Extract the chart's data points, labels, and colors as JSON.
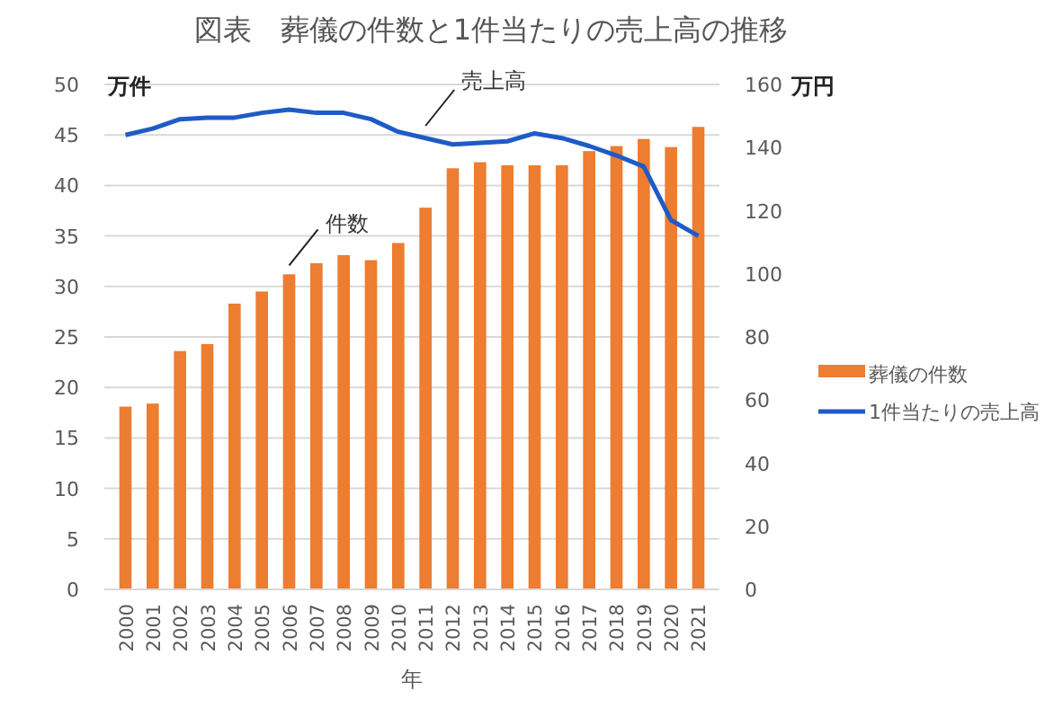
{
  "chart_data": {
    "type": "bar",
    "title": "図表　葬儀の件数と1件当たりの売上高の推移",
    "xlabel": "年",
    "ylabel": "万件",
    "y2label": "万円",
    "categories": [
      "2000",
      "2001",
      "2002",
      "2003",
      "2004",
      "2005",
      "2006",
      "2007",
      "2008",
      "2009",
      "2010",
      "2011",
      "2012",
      "2013",
      "2014",
      "2015",
      "2016",
      "2017",
      "2018",
      "2019",
      "2020",
      "2021"
    ],
    "series": [
      {
        "name": "葬儀の件数",
        "color": "#ed7d31",
        "values": [
          18.1,
          18.4,
          23.6,
          24.3,
          28.3,
          29.5,
          31.2,
          32.3,
          33.1,
          32.6,
          34.3,
          37.8,
          41.7,
          42.3,
          42.0,
          42.0,
          42.0,
          43.4,
          43.9,
          44.6,
          43.8,
          45.8
        ]
      },
      {
        "name": "1件当たりの売上高",
        "type": "line",
        "axis": "y2",
        "color": "#1f5bc6",
        "values": [
          144,
          146,
          149,
          149.5,
          149.5,
          151,
          152,
          151,
          151,
          149,
          145,
          143,
          141,
          141.5,
          142,
          144.5,
          143,
          140.5,
          137.5,
          134,
          117,
          112
        ]
      }
    ],
    "ylim": [
      0,
      50
    ],
    "yticks": [
      0,
      5,
      10,
      15,
      20,
      25,
      30,
      35,
      40,
      45,
      50
    ],
    "y2lim": [
      0,
      160
    ],
    "y2ticks": [
      0,
      20,
      40,
      60,
      80,
      100,
      120,
      140,
      160
    ],
    "grid": "y",
    "legend": "right",
    "line_style": "solid",
    "marker": "none",
    "annotations": [
      {
        "text": "件数",
        "x": "2006",
        "y": 31.2
      },
      "売上高"
    ]
  }
}
